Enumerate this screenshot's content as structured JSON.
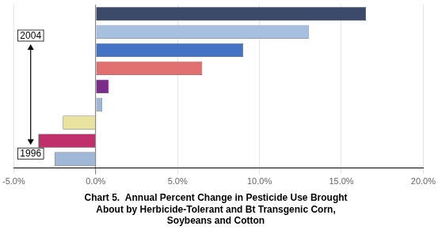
{
  "chart_data": {
    "type": "bar",
    "orientation": "horizontal",
    "title": [
      "Chart 5.  Annual Percent Change in Pesticide Use Brought",
      "About by Herbicide-Tolerant and Bt Transgenic Corn,",
      "Soybeans and Cotton"
    ],
    "categories": [
      null,
      null,
      null,
      null,
      null,
      null,
      null,
      null,
      null
    ],
    "values": [
      16.5,
      13.0,
      9.0,
      6.5,
      0.8,
      0.4,
      -2.0,
      -3.5,
      -2.5
    ],
    "colors": [
      "#3B4A6B",
      "#A8C0E0",
      "#4472C4",
      "#E07070",
      "#7B2D8B",
      "#A0B8D8",
      "#E8E4A0",
      "#C0306A",
      "#A0B8D8"
    ],
    "xlim": [
      -5.0,
      20.0
    ],
    "xticks": [
      {
        "value": -5.0,
        "label": "-5.0%"
      },
      {
        "value": 0.0,
        "label": "0.0%"
      },
      {
        "value": 5.0,
        "label": "5.0%"
      },
      {
        "value": 10.0,
        "label": "10.0%"
      },
      {
        "value": 15.0,
        "label": "15.0%"
      },
      {
        "value": 20.0,
        "label": "20.0%"
      }
    ],
    "grid": true,
    "tick_labels": "x",
    "annotations": [
      "2004",
      "1996"
    ]
  }
}
